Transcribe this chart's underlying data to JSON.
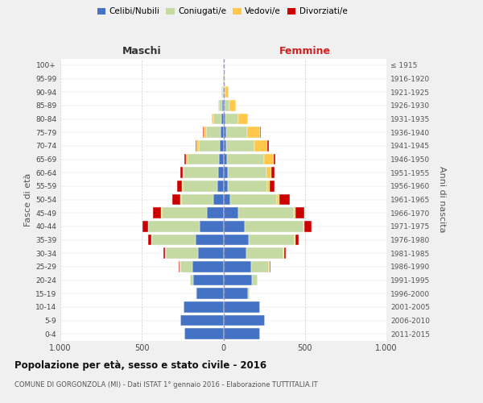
{
  "age_groups": [
    "0-4",
    "5-9",
    "10-14",
    "15-19",
    "20-24",
    "25-29",
    "30-34",
    "35-39",
    "40-44",
    "45-49",
    "50-54",
    "55-59",
    "60-64",
    "65-69",
    "70-74",
    "75-79",
    "80-84",
    "85-89",
    "90-94",
    "95-99",
    "100+"
  ],
  "birth_years": [
    "2011-2015",
    "2006-2010",
    "2001-2005",
    "1996-2000",
    "1991-1995",
    "1986-1990",
    "1981-1985",
    "1976-1980",
    "1971-1975",
    "1966-1970",
    "1961-1965",
    "1956-1960",
    "1951-1955",
    "1946-1950",
    "1941-1945",
    "1936-1940",
    "1931-1935",
    "1926-1930",
    "1921-1925",
    "1916-1920",
    "≤ 1915"
  ],
  "maschi": {
    "celibe": [
      240,
      265,
      245,
      165,
      185,
      190,
      155,
      170,
      145,
      100,
      60,
      35,
      30,
      25,
      20,
      15,
      10,
      5,
      3,
      2,
      1
    ],
    "coniugato": [
      0,
      0,
      0,
      5,
      20,
      75,
      200,
      270,
      315,
      280,
      200,
      215,
      215,
      195,
      130,
      90,
      50,
      20,
      5,
      2,
      0
    ],
    "vedovo": [
      0,
      0,
      0,
      0,
      0,
      2,
      2,
      2,
      2,
      2,
      2,
      5,
      5,
      10,
      15,
      15,
      10,
      5,
      2,
      0,
      0
    ],
    "divorziato": [
      0,
      0,
      0,
      0,
      2,
      5,
      10,
      20,
      35,
      50,
      50,
      30,
      15,
      10,
      5,
      5,
      0,
      0,
      0,
      0,
      0
    ]
  },
  "femmine": {
    "nubile": [
      225,
      255,
      225,
      150,
      175,
      170,
      140,
      155,
      130,
      90,
      40,
      25,
      25,
      20,
      15,
      15,
      10,
      8,
      3,
      2,
      1
    ],
    "coniugata": [
      0,
      0,
      0,
      10,
      35,
      110,
      230,
      280,
      360,
      340,
      290,
      245,
      240,
      230,
      175,
      130,
      80,
      30,
      10,
      2,
      0
    ],
    "vedova": [
      0,
      0,
      0,
      0,
      0,
      2,
      2,
      5,
      5,
      10,
      15,
      15,
      30,
      60,
      80,
      80,
      60,
      40,
      20,
      5,
      0
    ],
    "divorziata": [
      0,
      0,
      0,
      0,
      2,
      5,
      10,
      20,
      45,
      55,
      60,
      30,
      20,
      10,
      10,
      5,
      0,
      0,
      0,
      0,
      0
    ]
  },
  "colors": {
    "celibe": "#4472c4",
    "coniugato": "#c5d9a2",
    "vedovo": "#ffc84a",
    "divorziato": "#cc0000"
  },
  "legend_labels": [
    "Celibi/Nubili",
    "Coniugati/e",
    "Vedovi/e",
    "Divorziati/e"
  ],
  "title": "Popolazione per età, sesso e stato civile - 2016",
  "subtitle": "COMUNE DI GORGONZOLA (MI) - Dati ISTAT 1° gennaio 2016 - Elaborazione TUTTITALIA.IT",
  "label_maschi": "Maschi",
  "label_femmine": "Femmine",
  "ylabel_left": "Fasce di età",
  "ylabel_right": "Anni di nascita",
  "xlim": 1000,
  "bg_color": "#f0f0f0",
  "plot_bg": "#ffffff",
  "grid_color": "#cccccc"
}
